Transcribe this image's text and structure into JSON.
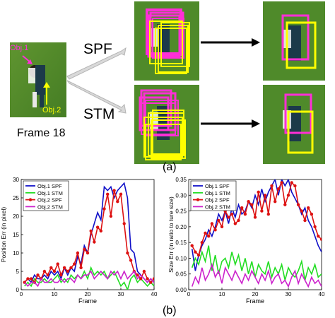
{
  "top": {
    "frame_caption": "Frame 18",
    "obj1_label": "Obj.1",
    "obj2_label": "Obj.2",
    "spf_label": "SPF",
    "stm_label": "STM",
    "caption": "(a)",
    "colors": {
      "field": "#4f8a2a",
      "obj1": "#ff2fd6",
      "obj2": "#ffff00",
      "arrow": "#000000",
      "branch": "#d9d9d9"
    }
  },
  "bottom_caption": "(b)",
  "chart_data": [
    {
      "type": "line",
      "ylabel": "Position Err (in pixel)",
      "xlabel": "Frame",
      "xlim": [
        0,
        40
      ],
      "ylim": [
        0,
        30
      ],
      "xticks": [
        0,
        10,
        20,
        30,
        40
      ],
      "yticks": [
        0,
        5,
        10,
        15,
        20,
        25,
        30
      ],
      "legend_position": "top-left",
      "grid": false,
      "series": [
        {
          "name": "Obj.1 SPF",
          "color": "#1010c8",
          "marker": "none",
          "x": [
            1,
            2,
            3,
            4,
            5,
            6,
            7,
            8,
            9,
            10,
            11,
            12,
            13,
            14,
            15,
            16,
            17,
            18,
            19,
            20,
            21,
            22,
            23,
            24,
            25,
            26,
            27,
            28,
            29,
            30,
            31,
            32,
            33,
            34,
            35,
            36,
            37,
            38,
            39,
            40
          ],
          "y": [
            2,
            3,
            2,
            4,
            3,
            3,
            4,
            3,
            5,
            4,
            5,
            3,
            6,
            4,
            6,
            5,
            9,
            7,
            12,
            10,
            15,
            18,
            21,
            19,
            28,
            27,
            28,
            25,
            27,
            28,
            29,
            25,
            11,
            10,
            5,
            4,
            3,
            2,
            3,
            2
          ]
        },
        {
          "name": "Obj.1 STM",
          "color": "#22dd22",
          "marker": "none",
          "x": [
            1,
            2,
            3,
            4,
            5,
            6,
            7,
            8,
            9,
            10,
            11,
            12,
            13,
            14,
            15,
            16,
            17,
            18,
            19,
            20,
            21,
            22,
            23,
            24,
            25,
            26,
            27,
            28,
            29,
            30,
            31,
            32,
            33,
            34,
            35,
            36,
            37,
            38,
            39,
            40
          ],
          "y": [
            1,
            2,
            1,
            3,
            2,
            2,
            3,
            2,
            2,
            3,
            4,
            2,
            3,
            2,
            4,
            3,
            4,
            3,
            5,
            3,
            6,
            4,
            5,
            4,
            5,
            3,
            4,
            5,
            3,
            1,
            2,
            0,
            3,
            4,
            2,
            3,
            2,
            1,
            2,
            1
          ]
        },
        {
          "name": "Obj.2 SPF",
          "color": "#dd1111",
          "marker": "circle",
          "x": [
            1,
            2,
            3,
            4,
            5,
            6,
            7,
            8,
            9,
            10,
            11,
            12,
            13,
            14,
            15,
            16,
            17,
            18,
            19,
            20,
            21,
            22,
            23,
            24,
            25,
            26,
            27,
            28,
            29,
            30,
            31,
            32,
            33,
            34,
            35,
            36,
            37,
            38,
            39,
            40
          ],
          "y": [
            2,
            3,
            3,
            2,
            4,
            3,
            5,
            4,
            6,
            5,
            7,
            4,
            6,
            5,
            6,
            7,
            10,
            6,
            11,
            10,
            16,
            13,
            17,
            16,
            22,
            26,
            20,
            27,
            24,
            26,
            18,
            10,
            8,
            5,
            4,
            3,
            5,
            3,
            2,
            3
          ]
        },
        {
          "name": "Obj.2 STM",
          "color": "#cc22cc",
          "marker": "none",
          "x": [
            1,
            2,
            3,
            4,
            5,
            6,
            7,
            8,
            9,
            10,
            11,
            12,
            13,
            14,
            15,
            16,
            17,
            18,
            19,
            20,
            21,
            22,
            23,
            24,
            25,
            26,
            27,
            28,
            29,
            30,
            31,
            32,
            33,
            34,
            35,
            36,
            37,
            38,
            39,
            40
          ],
          "y": [
            2,
            1,
            2,
            2,
            1,
            3,
            2,
            2,
            3,
            2,
            2,
            3,
            2,
            3,
            3,
            2,
            4,
            3,
            4,
            4,
            5,
            3,
            4,
            5,
            4,
            3,
            5,
            4,
            5,
            3,
            5,
            3,
            4,
            5,
            3,
            4,
            3,
            2,
            3,
            2
          ]
        }
      ]
    },
    {
      "type": "line",
      "ylabel": "Size Err (in ratio to ture size)",
      "xlabel": "Frame",
      "xlim": [
        0,
        40
      ],
      "ylim": [
        0,
        0.35
      ],
      "xticks": [
        0,
        10,
        20,
        30,
        40
      ],
      "yticks": [
        0,
        0.05,
        0.1,
        0.15,
        0.2,
        0.25,
        0.3,
        0.35
      ],
      "legend_position": "top-left",
      "grid": false,
      "series": [
        {
          "name": "Obj.1 SPF",
          "color": "#1010c8",
          "marker": "none",
          "x": [
            1,
            2,
            3,
            4,
            5,
            6,
            7,
            8,
            9,
            10,
            11,
            12,
            13,
            14,
            15,
            16,
            17,
            18,
            19,
            20,
            21,
            22,
            23,
            24,
            25,
            26,
            27,
            28,
            29,
            30,
            31,
            32,
            33,
            34,
            35,
            36,
            37,
            38,
            39,
            40
          ],
          "y": [
            0.13,
            0.06,
            0.11,
            0.14,
            0.16,
            0.19,
            0.17,
            0.2,
            0.24,
            0.22,
            0.25,
            0.21,
            0.26,
            0.23,
            0.27,
            0.24,
            0.25,
            0.28,
            0.26,
            0.3,
            0.27,
            0.32,
            0.28,
            0.31,
            0.33,
            0.35,
            0.3,
            0.35,
            0.33,
            0.35,
            0.31,
            0.29,
            0.27,
            0.24,
            0.26,
            0.22,
            0.2,
            0.17,
            0.14,
            0.12
          ]
        },
        {
          "name": "Obj.1 STM",
          "color": "#22dd22",
          "marker": "none",
          "x": [
            1,
            2,
            3,
            4,
            5,
            6,
            7,
            8,
            9,
            10,
            11,
            12,
            13,
            14,
            15,
            16,
            17,
            18,
            19,
            20,
            21,
            22,
            23,
            24,
            25,
            26,
            27,
            28,
            29,
            30,
            31,
            32,
            33,
            34,
            35,
            36,
            37,
            38,
            39,
            40
          ],
          "y": [
            0.07,
            0.1,
            0.08,
            0.12,
            0.09,
            0.14,
            0.06,
            0.11,
            0.05,
            0.09,
            0.1,
            0.07,
            0.12,
            0.08,
            0.11,
            0.06,
            0.1,
            0.05,
            0.09,
            0.04,
            0.08,
            0.06,
            0.05,
            0.09,
            0.04,
            0.07,
            0.05,
            0.08,
            0.03,
            0.07,
            0.05,
            0.04,
            0.06,
            0.09,
            0.03,
            0.07,
            0.05,
            0.08,
            0.04,
            0.05
          ]
        },
        {
          "name": "Obj.2 SPF",
          "color": "#dd1111",
          "marker": "circle",
          "x": [
            1,
            2,
            3,
            4,
            5,
            6,
            7,
            8,
            9,
            10,
            11,
            12,
            13,
            14,
            15,
            16,
            17,
            18,
            19,
            20,
            21,
            22,
            23,
            24,
            25,
            26,
            27,
            28,
            29,
            30,
            31,
            32,
            33,
            34,
            35,
            36,
            37,
            38,
            39,
            40
          ],
          "y": [
            0.14,
            0.12,
            0.11,
            0.15,
            0.18,
            0.17,
            0.21,
            0.19,
            0.22,
            0.2,
            0.25,
            0.23,
            0.24,
            0.21,
            0.22,
            0.26,
            0.24,
            0.28,
            0.27,
            0.23,
            0.31,
            0.25,
            0.3,
            0.24,
            0.33,
            0.28,
            0.32,
            0.34,
            0.27,
            0.3,
            0.34,
            0.33,
            0.27,
            0.25,
            0.22,
            0.26,
            0.24,
            0.2,
            0.17,
            0.16
          ]
        },
        {
          "name": "Obj.2 STM",
          "color": "#cc22cc",
          "marker": "none",
          "x": [
            1,
            2,
            3,
            4,
            5,
            6,
            7,
            8,
            9,
            10,
            11,
            12,
            13,
            14,
            15,
            16,
            17,
            18,
            19,
            20,
            21,
            22,
            23,
            24,
            25,
            26,
            27,
            28,
            29,
            30,
            31,
            32,
            33,
            34,
            35,
            36,
            37,
            38,
            39,
            40
          ],
          "y": [
            0.01,
            0.04,
            0.02,
            0.07,
            0.03,
            0.05,
            0.08,
            0.04,
            0.06,
            0.02,
            0.07,
            0.05,
            0.03,
            0.06,
            0.04,
            0.02,
            0.05,
            0.03,
            0.06,
            0.04,
            0.02,
            0.05,
            0.03,
            0.06,
            0.02,
            0.04,
            0.05,
            0.02,
            0.03,
            0.01,
            0.04,
            0.06,
            0.02,
            0.05,
            0.03,
            0.01,
            0.04,
            0.02,
            0.03,
            0.01
          ]
        }
      ]
    }
  ]
}
